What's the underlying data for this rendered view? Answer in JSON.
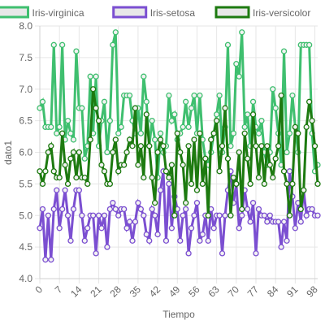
{
  "chart_data": {
    "type": "line",
    "xlabel": "Tiempo",
    "ylabel": "dato1",
    "ylim": [
      4.0,
      8.0
    ],
    "yticks": [
      "4.0",
      "4.5",
      "5.0",
      "5.5",
      "6.0",
      "6.5",
      "7.0",
      "7.5",
      "8.0"
    ],
    "x": [
      0,
      1,
      2,
      3,
      4,
      5,
      6,
      7,
      8,
      9,
      10,
      11,
      12,
      13,
      14,
      15,
      16,
      17,
      18,
      19,
      20,
      21,
      22,
      23,
      24,
      25,
      26,
      27,
      28,
      29,
      30,
      31,
      32,
      33,
      34,
      35,
      36,
      37,
      38,
      39,
      40,
      41,
      42,
      43,
      44,
      45,
      46,
      47,
      48,
      49,
      50,
      51,
      52,
      53,
      54,
      55,
      56,
      57,
      58,
      59,
      60,
      61,
      62,
      63,
      64,
      65,
      66,
      67,
      68,
      69,
      70,
      71,
      72,
      73,
      74,
      75,
      76,
      77,
      78,
      79,
      80,
      81,
      82,
      83,
      84,
      85,
      86,
      87,
      88,
      89,
      90,
      91,
      92,
      93,
      94,
      95,
      96,
      97,
      98,
      99
    ],
    "xticks": [
      "0",
      "7",
      "14",
      "21",
      "28",
      "35",
      "42",
      "49",
      "56",
      "63",
      "70",
      "77",
      "84",
      "91",
      "98"
    ],
    "grid": true,
    "legend_position": "top",
    "series": [
      {
        "name": "Iris-virginica",
        "color": "#3fbf6f",
        "values": [
          6.7,
          6.8,
          6.4,
          6.4,
          6.4,
          7.7,
          6.3,
          6.4,
          7.7,
          6.2,
          6.5,
          6.3,
          6.2,
          7.6,
          6.7,
          6.7,
          5.9,
          6.1,
          7.2,
          6.3,
          7.2,
          6.1,
          6.5,
          6.8,
          6.0,
          6.5,
          7.7,
          7.9,
          6.3,
          6.4,
          6.9,
          6.9,
          6.9,
          6.5,
          6.3,
          6.7,
          6.3,
          7.2,
          6.8,
          6.1,
          6.5,
          6.2,
          5.6,
          6.3,
          6.0,
          6.1,
          6.9,
          6.5,
          6.6,
          6.2,
          6.3,
          6.4,
          6.8,
          6.4,
          6.7,
          6.9,
          6.3,
          6.9,
          6.2,
          5.9,
          5.8,
          6.0,
          6.3,
          6.6,
          6.9,
          6.0,
          6.4,
          7.7,
          6.1,
          6.3,
          7.4,
          7.2,
          7.9,
          6.4,
          6.6,
          6.1,
          6.8,
          6.4,
          6.3,
          6.5,
          6.0,
          5.8,
          6.0,
          7.0,
          6.7,
          6.3,
          5.8,
          7.6,
          6.0,
          6.3,
          6.9,
          6.4,
          6.0,
          7.7,
          7.7,
          7.7,
          7.7,
          6.3,
          5.7,
          5.8
        ]
      },
      {
        "name": "Iris-setosa",
        "color": "#7b4fd1",
        "values": [
          4.8,
          5.1,
          4.3,
          5.0,
          4.3,
          5.1,
          5.4,
          4.8,
          5.1,
          5.4,
          5.0,
          4.6,
          5.1,
          5.4,
          5.4,
          5.0,
          4.6,
          4.8,
          5.0,
          5.0,
          4.4,
          5.0,
          4.8,
          5.0,
          4.5,
          5.1,
          5.2,
          5.1,
          5.0,
          5.1,
          5.1,
          4.8,
          4.9,
          4.6,
          4.9,
          5.2,
          5.1,
          5.0,
          4.7,
          4.6,
          5.1,
          5.0,
          4.7,
          5.4,
          5.7,
          4.6,
          5.5,
          4.8,
          5.3,
          5.1,
          4.6,
          5.0,
          5.1,
          4.4,
          4.8,
          5.0,
          5.2,
          4.6,
          4.7,
          5.0,
          4.6,
          5.1,
          4.8,
          5.0,
          5.0,
          4.4,
          5.0,
          5.4,
          5.7,
          5.2,
          5.5,
          4.8,
          5.0,
          5.4,
          5.1,
          4.9,
          5.2,
          4.4,
          5.1,
          5.0,
          5.0,
          4.9,
          5.0,
          4.9,
          4.9,
          4.9,
          4.5,
          4.9,
          4.6,
          5.7,
          5.3,
          4.8,
          5.2,
          4.9,
          5.4,
          5.0,
          5.1,
          5.1,
          5.0,
          5.0
        ]
      },
      {
        "name": "Iris-versicolor",
        "color": "#1d7a10",
        "values": [
          5.7,
          5.5,
          5.7,
          6.0,
          6.1,
          5.7,
          5.6,
          5.6,
          6.3,
          5.8,
          5.5,
          5.9,
          6.0,
          5.6,
          6.0,
          5.6,
          5.6,
          5.5,
          6.2,
          7.0,
          6.7,
          6.5,
          5.8,
          5.7,
          5.5,
          5.5,
          6.0,
          6.2,
          5.7,
          5.8,
          5.8,
          6.0,
          6.2,
          6.1,
          6.7,
          5.8,
          6.1,
          5.6,
          6.6,
          6.1,
          5.6,
          5.2,
          6.0,
          6.2,
          6.1,
          5.7,
          5.6,
          5.8,
          5.0,
          6.3,
          6.0,
          5.8,
          5.2,
          6.1,
          5.5,
          6.2,
          5.4,
          6.3,
          5.5,
          5.9,
          5.0,
          6.2,
          6.3,
          6.5,
          5.7,
          6.1,
          6.7,
          5.9,
          5.0,
          5.6,
          5.5,
          6.0,
          5.1,
          6.3,
          5.9,
          5.5,
          6.6,
          6.1,
          5.6,
          6.1,
          5.5,
          6.1,
          5.8,
          5.6,
          5.9,
          6.1,
          6.9,
          5.7,
          5.5,
          5.0,
          5.5,
          6.4,
          6.3,
          5.1,
          5.4,
          6.4,
          6.8,
          6.5,
          6.1,
          5.5
        ]
      }
    ]
  }
}
